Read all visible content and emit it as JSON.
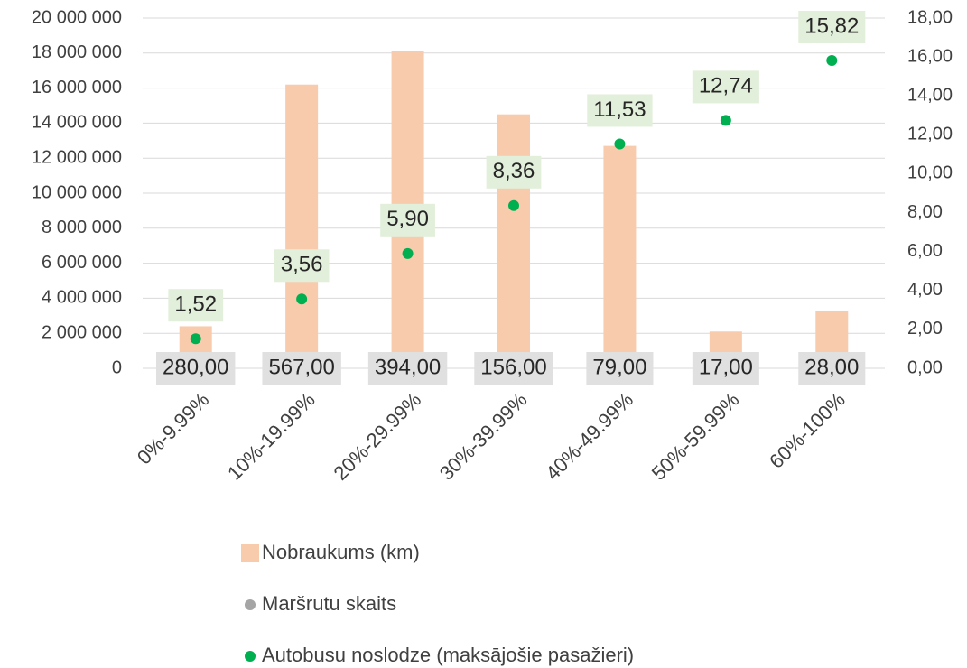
{
  "chart_data": {
    "type": "bar",
    "categories": [
      "0%-9.99%",
      "10%-19.99%",
      "20%-29.99%",
      "30%-39.99%",
      "40%-49.99%",
      "50%-59.99%",
      "60%-100%"
    ],
    "series": [
      {
        "name": "Nobraukums (km)",
        "type": "bar",
        "color": "#f8cbad",
        "axis": "y",
        "values": [
          2400000,
          16200000,
          18100000,
          14500000,
          12700000,
          2100000,
          3300000
        ]
      },
      {
        "name": "Maršrutu skaits",
        "type": "scatter",
        "color": "#a5a5a5",
        "axis": "y",
        "label_box": "#e0e0e0",
        "values": [
          280,
          567,
          394,
          156,
          79,
          17,
          28
        ],
        "value_labels": [
          "280,00",
          "567,00",
          "394,00",
          "156,00",
          "79,00",
          "17,00",
          "28,00"
        ]
      },
      {
        "name": "Autobusu noslodze (maksājošie pasažieri)",
        "type": "scatter",
        "color": "#00b050",
        "axis": "y2",
        "label_box": "#e2efda",
        "values": [
          1.52,
          3.56,
          5.9,
          8.36,
          11.53,
          12.74,
          15.82
        ],
        "value_labels": [
          "1,52",
          "3,56",
          "5,90",
          "8,36",
          "11,53",
          "12,74",
          "15,82"
        ]
      }
    ],
    "ylim": [
      0,
      20000000
    ],
    "yticks": [
      0,
      {
        "value": 2000000,
        "label": "2 000 000"
      },
      {
        "value": 4000000,
        "label": "4 000 000"
      },
      {
        "value": 6000000,
        "label": "6 000 000"
      },
      {
        "value": 8000000,
        "label": "8 000 000"
      },
      {
        "value": 10000000,
        "label": "10 000 000"
      },
      {
        "value": 12000000,
        "label": "12 000 000"
      },
      {
        "value": 14000000,
        "label": "14 000 000"
      },
      {
        "value": 16000000,
        "label": "16 000 000"
      },
      {
        "value": 18000000,
        "label": "18 000 000"
      },
      {
        "value": 20000000,
        "label": "20 000 000"
      }
    ],
    "y2lim": [
      0,
      18
    ],
    "y2ticks": [
      {
        "value": 0,
        "label": "0,00"
      },
      {
        "value": 2,
        "label": "2,00"
      },
      {
        "value": 4,
        "label": "4,00"
      },
      {
        "value": 6,
        "label": "6,00"
      },
      {
        "value": 8,
        "label": "8,00"
      },
      {
        "value": 10,
        "label": "10,00"
      },
      {
        "value": 12,
        "label": "12,00"
      },
      {
        "value": 14,
        "label": "14,00"
      },
      {
        "value": 16,
        "label": "16,00"
      },
      {
        "value": 18,
        "label": "18,00"
      }
    ],
    "grid": true,
    "legend": "bottom"
  }
}
